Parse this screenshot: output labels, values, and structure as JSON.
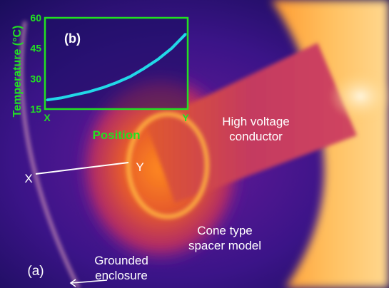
{
  "labels": {
    "panel_a": "(a)",
    "panel_b": "(b)",
    "conductor_line1": "High voltage",
    "conductor_line2": "conductor",
    "spacer_line1": "Cone type",
    "spacer_line2": "spacer model",
    "enclosure_line1": "Grounded",
    "enclosure_line2": "enclosure",
    "point_x": "X",
    "point_y": "Y"
  },
  "colors": {
    "inset_frame": "#22e022",
    "inset_curve": "#22d8e8",
    "label_text": "#ffffff",
    "background_cold": "#1a0f5c",
    "hot": "#ffd27a"
  },
  "chart_data": {
    "type": "line",
    "title": "(b)",
    "xlabel": "Position",
    "ylabel": "Temperature (°C)",
    "x_tick_labels": [
      "X",
      "Y"
    ],
    "y_ticks": [
      15,
      30,
      45,
      60
    ],
    "ylim": [
      15,
      60
    ],
    "xlim": [
      0,
      1
    ],
    "grid": false,
    "series": [
      {
        "x": [
          0,
          0.1,
          0.2,
          0.3,
          0.4,
          0.5,
          0.6,
          0.7,
          0.8,
          0.9,
          1.0
        ],
        "values": [
          19.5,
          20.5,
          22,
          23.5,
          25.5,
          28,
          31,
          35,
          39.5,
          45,
          52
        ]
      }
    ]
  }
}
